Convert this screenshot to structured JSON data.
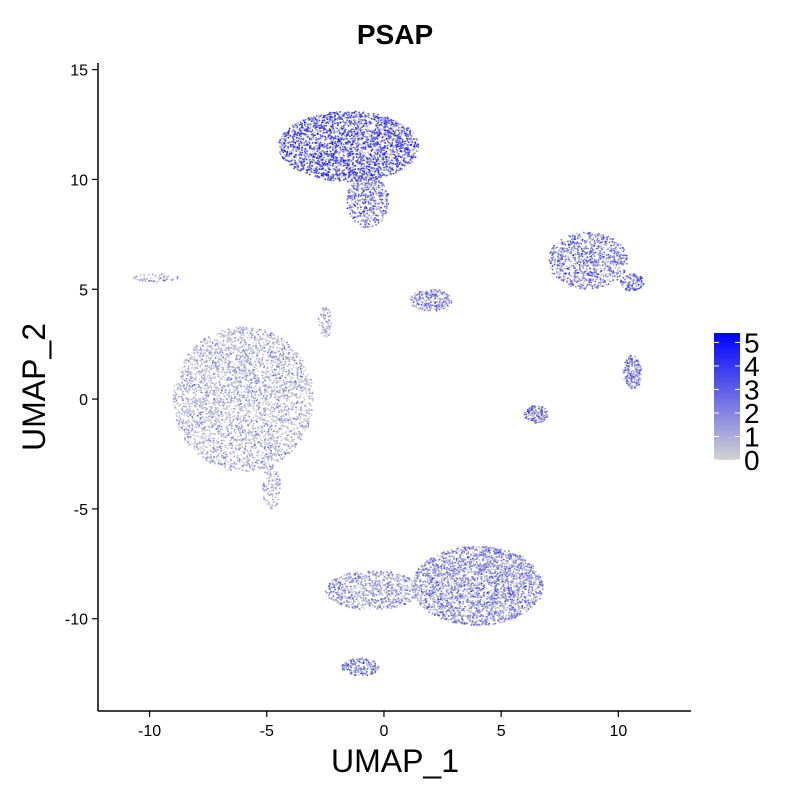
{
  "chart_data": {
    "type": "scatter",
    "title": "PSAP",
    "xlabel": "UMAP_1",
    "ylabel": "UMAP_2",
    "xlim": [
      -12.2,
      13.1
    ],
    "ylim": [
      -14.2,
      15.3
    ],
    "xticks": [
      -10,
      -5,
      0,
      5,
      10
    ],
    "xtick_labels": [
      "-10",
      "-5",
      "0",
      "5",
      "10"
    ],
    "yticks": [
      -10,
      -5,
      0,
      5,
      10,
      15
    ],
    "ytick_labels": [
      "-10",
      "-5",
      "0",
      "5",
      "10",
      "15"
    ],
    "grid": false,
    "legend": {
      "placement": "right",
      "scale_min": 0,
      "scale_max": 5.4,
      "labels": [
        "5",
        "4",
        "3",
        "2",
        "1",
        "0"
      ],
      "values": [
        5,
        4,
        3,
        2,
        1,
        0
      ],
      "low_color": "#d3d3d3",
      "high_color": "#0000ff"
    },
    "clusters": [
      {
        "cx": -1.5,
        "cy": 11.5,
        "rx": 3.0,
        "ry": 1.6,
        "n": 2600,
        "expr": 3.4
      },
      {
        "cx": -0.7,
        "cy": 9.0,
        "rx": 0.9,
        "ry": 1.2,
        "n": 450,
        "expr": 2.8
      },
      {
        "cx": -6.0,
        "cy": 0.0,
        "rx": 3.0,
        "ry": 3.3,
        "n": 3200,
        "expr": 0.9
      },
      {
        "cx": 4.0,
        "cy": -8.5,
        "rx": 2.8,
        "ry": 1.8,
        "n": 2600,
        "expr": 2.0
      },
      {
        "cx": -0.5,
        "cy": -8.7,
        "rx": 2.0,
        "ry": 0.9,
        "n": 800,
        "expr": 1.5
      },
      {
        "cx": -1.0,
        "cy": -12.2,
        "rx": 0.8,
        "ry": 0.4,
        "n": 180,
        "expr": 2.3
      },
      {
        "cx": 2.0,
        "cy": 4.5,
        "rx": 0.9,
        "ry": 0.5,
        "n": 260,
        "expr": 2.3
      },
      {
        "cx": 8.7,
        "cy": 6.3,
        "rx": 1.7,
        "ry": 1.3,
        "n": 900,
        "expr": 2.4
      },
      {
        "cx": 10.6,
        "cy": 5.3,
        "rx": 0.5,
        "ry": 0.4,
        "n": 120,
        "expr": 3.0
      },
      {
        "cx": 10.6,
        "cy": 1.2,
        "rx": 0.4,
        "ry": 0.8,
        "n": 220,
        "expr": 2.2
      },
      {
        "cx": 6.5,
        "cy": -0.7,
        "rx": 0.5,
        "ry": 0.4,
        "n": 150,
        "expr": 2.5
      },
      {
        "cx": -2.5,
        "cy": 3.5,
        "rx": 0.3,
        "ry": 0.7,
        "n": 70,
        "expr": 1.2
      },
      {
        "cx": -4.8,
        "cy": -4.0,
        "rx": 0.4,
        "ry": 1.0,
        "n": 110,
        "expr": 1.2
      },
      {
        "cx": -9.7,
        "cy": 5.5,
        "rx": 1.0,
        "ry": 0.2,
        "n": 60,
        "expr": 1.4
      }
    ]
  }
}
